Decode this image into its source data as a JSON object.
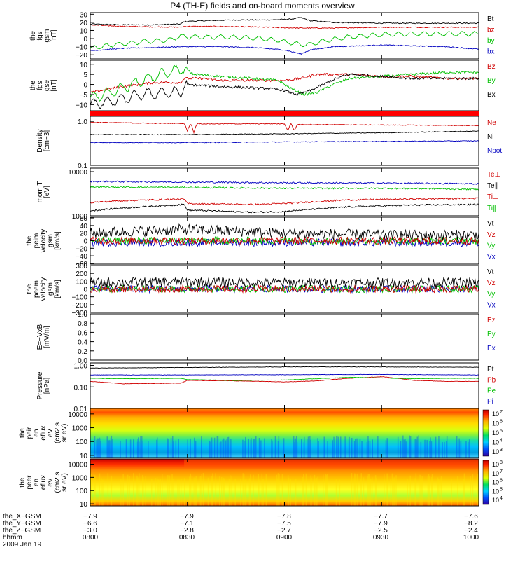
{
  "title": "P4 (TH-E) fields and on-board moments overview",
  "date_label": "2009 Jan 19",
  "chart_data": [
    {
      "type": "line",
      "id": "fgs_gsm",
      "ylabel_lines": [
        "the",
        "fgs",
        "gsm",
        "[nT]"
      ],
      "ylim": [
        -25,
        32
      ],
      "ticks": [
        {
          "v": 30,
          "t": "30"
        },
        {
          "v": 20,
          "t": "20"
        },
        {
          "v": 10,
          "t": "10"
        },
        {
          "v": 0,
          "t": "0"
        },
        {
          "v": -10,
          "t": "−10"
        },
        {
          "v": -20,
          "t": "−20"
        }
      ],
      "legend": [
        {
          "name": "Bt",
          "color": "#000000"
        },
        {
          "name": "bz",
          "color": "#d00000"
        },
        {
          "name": "by",
          "color": "#00c000"
        },
        {
          "name": "bx",
          "color": "#0000c0"
        }
      ],
      "series": [
        {
          "name": "Bt",
          "color": "#000000",
          "x": [
            0,
            10,
            20,
            28,
            29,
            35,
            45,
            55,
            62,
            65,
            68,
            75,
            90,
            100,
            120
          ],
          "y": [
            18,
            17,
            17,
            18,
            21,
            22,
            23,
            23,
            24,
            26,
            22,
            20,
            19,
            19,
            19
          ]
        },
        {
          "name": "bz",
          "color": "#d00000",
          "x": [
            0,
            10,
            28,
            29,
            40,
            55,
            65,
            75,
            90,
            120
          ],
          "y": [
            17,
            15,
            14,
            15,
            15,
            14,
            13,
            13,
            14,
            14
          ]
        },
        {
          "name": "by",
          "color": "#00c000",
          "x": [
            0,
            8,
            16,
            24,
            28,
            32,
            40,
            50,
            58,
            63,
            67,
            72,
            80,
            90,
            100,
            110,
            120
          ],
          "y": [
            -12,
            -7,
            -4,
            -2,
            3,
            2,
            2,
            1,
            -2,
            -6,
            -8,
            -3,
            2,
            5,
            6,
            6,
            6
          ]
        },
        {
          "name": "bx",
          "color": "#0000c0",
          "x": [
            0,
            10,
            20,
            28,
            40,
            50,
            60,
            65,
            68,
            75,
            90,
            100,
            110,
            120
          ],
          "y": [
            -15,
            -12,
            -11,
            -10,
            -10,
            -11,
            -14,
            -19,
            -14,
            -10,
            -8,
            -9,
            -10,
            -13
          ]
        }
      ]
    },
    {
      "type": "line",
      "id": "fgs_gse",
      "ylabel_lines": [
        "the",
        "fgs",
        "gse",
        "[nT]"
      ],
      "ylim": [
        -13,
        12
      ],
      "ticks": [
        {
          "v": 10,
          "t": "10"
        },
        {
          "v": 5,
          "t": "5"
        },
        {
          "v": 0,
          "t": "0"
        },
        {
          "v": -5,
          "t": "−5"
        },
        {
          "v": -10,
          "t": "−10"
        }
      ],
      "legend": [
        {
          "name": "Bz",
          "color": "#d00000"
        },
        {
          "name": "By",
          "color": "#00c000"
        },
        {
          "name": "Bx",
          "color": "#000000"
        }
      ],
      "series": [
        {
          "name": "Bz",
          "color": "#d00000",
          "x": [
            0,
            10,
            20,
            28,
            29,
            35,
            40,
            50,
            60,
            65,
            70,
            80,
            90,
            100,
            110,
            120
          ],
          "y": [
            -4,
            -1,
            1,
            1,
            3,
            3,
            2,
            2,
            2,
            3,
            5,
            5,
            4,
            4,
            3,
            3
          ]
        },
        {
          "name": "By",
          "color": "#00c000",
          "x": [
            0,
            8,
            16,
            24,
            29,
            32,
            40,
            50,
            58,
            62,
            66,
            70,
            75,
            80,
            90,
            100,
            110,
            120
          ],
          "y": [
            -7,
            -3,
            2,
            6,
            8,
            5,
            4,
            3,
            2,
            -2,
            -5,
            -4,
            0,
            3,
            4,
            5,
            6,
            6
          ]
        },
        {
          "name": "Bx",
          "color": "#000000",
          "x": [
            0,
            8,
            16,
            24,
            28,
            29,
            40,
            55,
            60,
            64,
            68,
            72,
            76,
            80,
            90,
            100,
            110,
            120
          ],
          "y": [
            -10,
            -8,
            -5,
            -4,
            -4,
            0,
            -1,
            -2,
            -3,
            -5,
            -3,
            0,
            3,
            5,
            4,
            3,
            3,
            3
          ]
        }
      ]
    },
    {
      "type": "line",
      "id": "density",
      "ylabel_lines": [
        "Density",
        "[cm−3]"
      ],
      "log": true,
      "ylim": [
        0.1,
        1.3
      ],
      "ticks": [
        {
          "v": 1.0,
          "t": "1.0"
        },
        {
          "v": 0.1,
          "t": "0.1"
        }
      ],
      "legend": [
        {
          "name": "Ne",
          "color": "#d00000"
        },
        {
          "name": "Ni",
          "color": "#000000"
        },
        {
          "name": "Npot",
          "color": "#0000c0"
        }
      ],
      "series": [
        {
          "name": "Ne",
          "color": "#d00000",
          "x": [
            0,
            20,
            29,
            30,
            31,
            32,
            33,
            34,
            60,
            61,
            62,
            63,
            64,
            120
          ],
          "y": [
            0.95,
            0.9,
            0.9,
            0.6,
            0.9,
            0.55,
            0.9,
            0.88,
            0.88,
            0.6,
            0.9,
            0.6,
            0.85,
            0.8
          ]
        },
        {
          "name": "Ni",
          "color": "#000000",
          "x": [
            0,
            30,
            60,
            90,
            120
          ],
          "y": [
            0.5,
            0.5,
            0.52,
            0.55,
            0.6
          ]
        },
        {
          "name": "Npot",
          "color": "#0000c0",
          "x": [
            0,
            30,
            60,
            90,
            120
          ],
          "y": [
            0.33,
            0.33,
            0.34,
            0.35,
            0.36
          ]
        }
      ]
    },
    {
      "type": "line",
      "id": "temperature",
      "ylabel_lines": [
        "mom T",
        "[eV]"
      ],
      "log": true,
      "ylim": [
        1000,
        12000
      ],
      "ticks": [
        {
          "v": 10000,
          "t": "10000"
        },
        {
          "v": 1000,
          "t": "1000"
        }
      ],
      "legend": [
        {
          "name": "Te⊥",
          "color": "#d00000"
        },
        {
          "name": "Te∥",
          "color": "#000000"
        },
        {
          "name": "Ti⊥",
          "color": "#d00000"
        },
        {
          "name": "Ti∥",
          "color": "#00c000"
        }
      ],
      "series": [
        {
          "name": "Ti⊥",
          "color": "#0000c0",
          "x": [
            0,
            30,
            60,
            90,
            120
          ],
          "y": [
            6000,
            5800,
            5600,
            5500,
            5300
          ]
        },
        {
          "name": "Ti∥",
          "color": "#00c000",
          "x": [
            0,
            30,
            60,
            90,
            120
          ],
          "y": [
            4500,
            4400,
            4200,
            4200,
            4000
          ]
        },
        {
          "name": "Te⊥",
          "color": "#d00000",
          "x": [
            0,
            10,
            29,
            30,
            50,
            60,
            80,
            100,
            120
          ],
          "y": [
            2000,
            2200,
            2400,
            1900,
            1800,
            1900,
            2300,
            2400,
            2500
          ]
        },
        {
          "name": "Te∥",
          "color": "#000000",
          "x": [
            0,
            10,
            29,
            30,
            50,
            60,
            80,
            100,
            120
          ],
          "y": [
            1300,
            1500,
            1800,
            1350,
            1200,
            1250,
            1600,
            1750,
            1800
          ]
        }
      ]
    },
    {
      "type": "line",
      "id": "peim_velocity",
      "ylabel_lines": [
        "the",
        "peim",
        "velocity",
        "gsm",
        "[km/s]"
      ],
      "ylim": [
        -62,
        62
      ],
      "ticks": [
        {
          "v": 60,
          "t": "60"
        },
        {
          "v": 40,
          "t": "40"
        },
        {
          "v": 20,
          "t": "20"
        },
        {
          "v": 0,
          "t": "0"
        },
        {
          "v": -20,
          "t": "−20"
        },
        {
          "v": -40,
          "t": "−40"
        },
        {
          "v": -60,
          "t": "−60"
        }
      ],
      "legend": [
        {
          "name": "Vt",
          "color": "#000000"
        },
        {
          "name": "Vz",
          "color": "#d00000"
        },
        {
          "name": "Vy",
          "color": "#00c000"
        },
        {
          "name": "Vx",
          "color": "#0000c0"
        }
      ],
      "series": [
        {
          "name": "Vx",
          "color": "#0000c0",
          "x": [
            0,
            30,
            60,
            90,
            120
          ],
          "y": [
            -5,
            -5,
            -5,
            -5,
            -5
          ]
        },
        {
          "name": "Vy",
          "color": "#00c000",
          "x": [
            0,
            30,
            60,
            90,
            120
          ],
          "y": [
            0,
            0,
            0,
            0,
            0
          ]
        },
        {
          "name": "Vz",
          "color": "#d00000",
          "x": [
            0,
            30,
            60,
            90,
            120
          ],
          "y": [
            0,
            0,
            0,
            0,
            0
          ]
        },
        {
          "name": "Vt",
          "color": "#000000",
          "x": [
            0,
            30,
            60,
            90,
            120
          ],
          "y": [
            20,
            30,
            20,
            15,
            15
          ]
        }
      ]
    },
    {
      "type": "line",
      "id": "peem_velocity",
      "ylabel_lines": [
        "the",
        "peem",
        "velocity",
        "gsm",
        "[km/s]"
      ],
      "ylim": [
        -300,
        300
      ],
      "ticks": [
        {
          "v": 300,
          "t": "300"
        },
        {
          "v": 200,
          "t": "200"
        },
        {
          "v": 100,
          "t": "100"
        },
        {
          "v": 0,
          "t": "0"
        },
        {
          "v": -100,
          "t": "−100"
        },
        {
          "v": -200,
          "t": "−200"
        },
        {
          "v": -300,
          "t": "−300"
        }
      ],
      "legend": [
        {
          "name": "Vt",
          "color": "#000000"
        },
        {
          "name": "Vz",
          "color": "#d00000"
        },
        {
          "name": "Vy",
          "color": "#00c000"
        },
        {
          "name": "Vx",
          "color": "#0000c0"
        }
      ],
      "series": [
        {
          "name": "Vx",
          "color": "#0000c0",
          "x": [
            0,
            30,
            60,
            90,
            120
          ],
          "y": [
            0,
            0,
            0,
            0,
            0
          ]
        },
        {
          "name": "Vy",
          "color": "#00c000",
          "x": [
            0,
            30,
            60,
            90,
            120
          ],
          "y": [
            0,
            0,
            0,
            0,
            0
          ]
        },
        {
          "name": "Vz",
          "color": "#d00000",
          "x": [
            0,
            30,
            60,
            90,
            120
          ],
          "y": [
            0,
            0,
            0,
            0,
            0
          ]
        },
        {
          "name": "Vt",
          "color": "#000000",
          "x": [
            0,
            30,
            60,
            90,
            120
          ],
          "y": [
            80,
            90,
            80,
            80,
            80
          ]
        }
      ]
    },
    {
      "type": "line",
      "id": "efield",
      "ylabel_lines": [
        "E=−VxB",
        "[mV/m]"
      ],
      "ylim": [
        0,
        1.0
      ],
      "ticks": [
        {
          "v": 1.0,
          "t": "1.0"
        },
        {
          "v": 0.8,
          "t": "0.8"
        },
        {
          "v": 0.6,
          "t": "0.6"
        },
        {
          "v": 0.4,
          "t": "0.4"
        },
        {
          "v": 0.2,
          "t": "0.2"
        },
        {
          "v": 0.0,
          "t": "0.0"
        }
      ],
      "legend": [
        {
          "name": "Ez",
          "color": "#d00000"
        },
        {
          "name": "Ey",
          "color": "#00c000"
        },
        {
          "name": "Ex",
          "color": "#0000c0"
        }
      ],
      "series": []
    },
    {
      "type": "line",
      "id": "pressure",
      "ylabel_lines": [
        "Pressure",
        "[nPa]"
      ],
      "log": true,
      "ylim": [
        0.01,
        1.3
      ],
      "ticks": [
        {
          "v": 1.0,
          "t": "1.00"
        },
        {
          "v": 0.1,
          "t": "0.10"
        },
        {
          "v": 0.01,
          "t": "0.01"
        }
      ],
      "legend": [
        {
          "name": "Pt",
          "color": "#000000"
        },
        {
          "name": "Pb",
          "color": "#d00000"
        },
        {
          "name": "Pe",
          "color": "#00c000"
        },
        {
          "name": "Pi",
          "color": "#0000c0"
        }
      ],
      "series": [
        {
          "name": "Pt",
          "color": "#000000",
          "x": [
            0,
            30,
            60,
            90,
            120
          ],
          "y": [
            0.75,
            0.8,
            0.85,
            0.85,
            0.82
          ]
        },
        {
          "name": "Pi",
          "color": "#0000c0",
          "x": [
            0,
            30,
            60,
            90,
            120
          ],
          "y": [
            0.36,
            0.36,
            0.37,
            0.38,
            0.36
          ]
        },
        {
          "name": "Pb",
          "color": "#d00000",
          "x": [
            0,
            10,
            28,
            30,
            45,
            60,
            70,
            80,
            90,
            100,
            110,
            120
          ],
          "y": [
            0.18,
            0.14,
            0.15,
            0.2,
            0.19,
            0.17,
            0.19,
            0.25,
            0.3,
            0.2,
            0.18,
            0.18
          ]
        },
        {
          "name": "Pe",
          "color": "#00c000",
          "x": [
            0,
            10,
            28,
            30,
            45,
            60,
            70,
            80,
            90,
            100,
            110,
            120
          ],
          "y": [
            0.25,
            0.24,
            0.25,
            0.22,
            0.2,
            0.21,
            0.24,
            0.28,
            0.26,
            0.24,
            0.25,
            0.25
          ]
        }
      ]
    },
    {
      "type": "heatmap",
      "id": "peir_spectrogram",
      "ylabel_lines": [
        "the",
        "peir",
        "en",
        "eflux",
        "eV",
        "(cm2 s",
        "sr eV)"
      ],
      "log": true,
      "ylim": [
        7,
        25000
      ],
      "ticks": [
        {
          "v": 10000,
          "t": "10000"
        },
        {
          "v": 1000,
          "t": "1000"
        },
        {
          "v": 100,
          "t": "100"
        },
        {
          "v": 10,
          "t": "10"
        }
      ],
      "colorbar": {
        "ticks": [
          "10",
          "10",
          "10",
          "10",
          "10"
        ],
        "exp": [
          "7",
          "6",
          "5",
          "4",
          "3"
        ]
      }
    },
    {
      "type": "heatmap",
      "id": "peer_spectrogram",
      "ylabel_lines": [
        "the",
        "peer",
        "en",
        "eflux",
        "eV",
        "(cm2 s",
        "sr eV)"
      ],
      "log": true,
      "ylim": [
        7,
        25000
      ],
      "ticks": [
        {
          "v": 10000,
          "t": "10000"
        },
        {
          "v": 1000,
          "t": "1000"
        },
        {
          "v": 100,
          "t": "100"
        },
        {
          "v": 10,
          "t": "10"
        }
      ],
      "colorbar": {
        "ticks": [
          "10",
          "10",
          "10",
          "10",
          "10"
        ],
        "exp": [
          "8",
          "7",
          "6",
          "5",
          "4"
        ]
      }
    }
  ],
  "x_axis": {
    "row_labels": [
      "the_X−GSM",
      "the_Y−GSM",
      "the_Z−GSM",
      "hhmm"
    ],
    "rows": [
      [
        "−7.9",
        "−7.9",
        "−7.8",
        "−7.7",
        "−7.6"
      ],
      [
        "−6.6",
        "−7.1",
        "−7.5",
        "−7.9",
        "−8.2"
      ],
      [
        "−3.0",
        "−2.8",
        "−2.7",
        "−2.5",
        "−2.4"
      ],
      [
        "0800",
        "0830",
        "0900",
        "0930",
        "1000"
      ]
    ]
  }
}
